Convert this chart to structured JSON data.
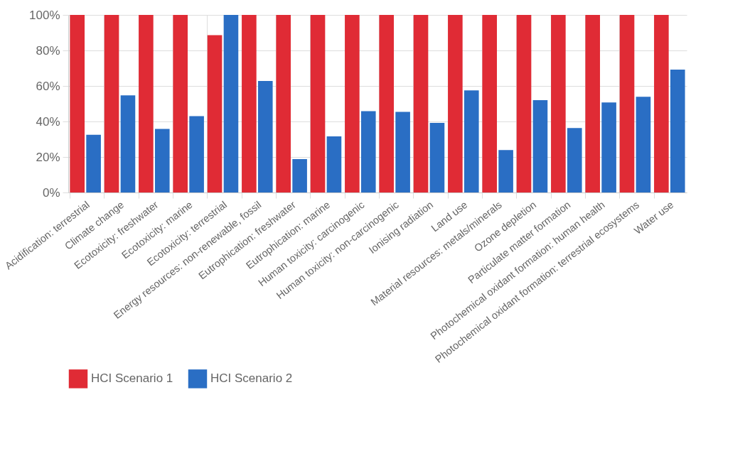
{
  "chart_data": {
    "type": "bar",
    "categories": [
      "Acidification: terrestrial",
      "Climate change",
      "Ecotoxicity: freshwater",
      "Ecotoxicity: marine",
      "Ecotoxicity: terrestrial",
      "Energy resources: non-renewable, fossil",
      "Eutrophication: freshwater",
      "Eutrophication: marine",
      "Human toxicity: carcinogenic",
      "Human toxicity: non-carcinogenic",
      "Ionising radiation",
      "Land use",
      "Material resources: metals/minerals",
      "Ozone depletion",
      "Particulate matter formation",
      "Photochemical oxidant formation: human health",
      "Photochemical oxidant formation: terrestrial ecosystems",
      "Water use"
    ],
    "series": [
      {
        "name": "HCI Scenario 1",
        "color": "#e02b35",
        "values": [
          100,
          100,
          100,
          100,
          88.6,
          100,
          100,
          100,
          100,
          100,
          100,
          100,
          100,
          100,
          100,
          100,
          100,
          100
        ]
      },
      {
        "name": "HCI Scenario 2",
        "color": "#2a6ec4",
        "values": [
          32.5,
          54.7,
          35.8,
          43.0,
          100,
          62.8,
          18.8,
          31.6,
          45.8,
          45.4,
          39.2,
          57.5,
          23.9,
          52.0,
          36.3,
          50.7,
          53.9,
          69.2
        ]
      }
    ],
    "ylim": [
      0,
      100
    ],
    "yticks": [
      {
        "value": 0,
        "label": "0%"
      },
      {
        "value": 20,
        "label": "20%"
      },
      {
        "value": 40,
        "label": "40%"
      },
      {
        "value": 60,
        "label": "60%"
      },
      {
        "value": 80,
        "label": "80%"
      },
      {
        "value": 100,
        "label": "100%"
      }
    ],
    "grid": true,
    "legend": "bottom"
  }
}
